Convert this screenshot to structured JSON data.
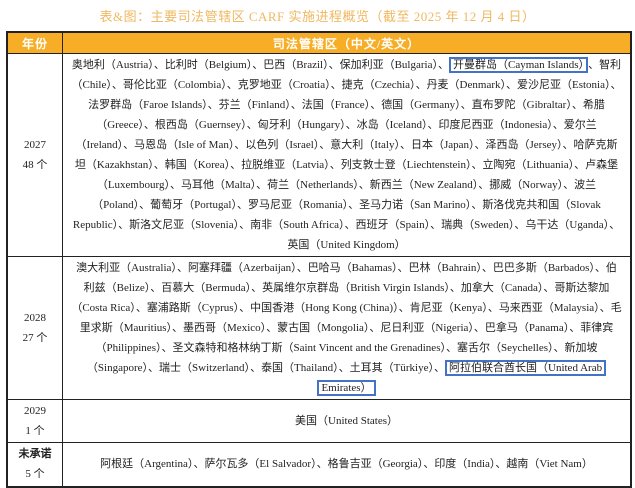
{
  "title": "表&图：主要司法管辖区 CARF 实施进程概览（截至 2025 年 12 月 4 日）",
  "headers": {
    "year": "年份",
    "jurisdictions": "司法管辖区（中文/英文）"
  },
  "separator": "、",
  "highlight_color": "#4472c4",
  "header_color": "#f7ae26",
  "rows": [
    {
      "year": "2027",
      "count": "48 个",
      "items": [
        {
          "t": "奥地利（Austria）"
        },
        {
          "t": "比利时（Belgium）"
        },
        {
          "t": "巴西（Brazil）"
        },
        {
          "t": "保加利亚（Bulgaria）"
        },
        {
          "t": "开曼群岛（Cayman Islands）",
          "hl": true
        },
        {
          "t": "智利（Chile）"
        },
        {
          "t": "哥伦比亚（Colombia）"
        },
        {
          "t": "克罗地亚（Croatia）"
        },
        {
          "t": "捷克（Czechia）"
        },
        {
          "t": "丹麦（Denmark）"
        },
        {
          "t": "爱沙尼亚（Estonia）"
        },
        {
          "t": "法罗群岛（Faroe Islands）"
        },
        {
          "t": "芬兰（Finland）"
        },
        {
          "t": "法国（France）"
        },
        {
          "t": "德国（Germany）"
        },
        {
          "t": "直布罗陀（Gibraltar）"
        },
        {
          "t": "希腊（Greece）"
        },
        {
          "t": "根西岛（Guernsey）"
        },
        {
          "t": "匈牙利（Hungary）"
        },
        {
          "t": "冰岛（Iceland）"
        },
        {
          "t": "印度尼西亚（Indonesia）"
        },
        {
          "t": "爱尔兰（Ireland）"
        },
        {
          "t": "马恩岛（Isle of Man）"
        },
        {
          "t": "以色列（Israel）"
        },
        {
          "t": "意大利（Italy）"
        },
        {
          "t": "日本（Japan）"
        },
        {
          "t": "泽西岛（Jersey）"
        },
        {
          "t": "哈萨克斯坦（Kazakhstan）"
        },
        {
          "t": "韩国（Korea）"
        },
        {
          "t": "拉脱维亚（Latvia）"
        },
        {
          "t": "列支敦士登（Liechtenstein）"
        },
        {
          "t": "立陶宛（Lithuania）"
        },
        {
          "t": "卢森堡（Luxembourg）"
        },
        {
          "t": "马耳他（Malta）"
        },
        {
          "t": "荷兰（Netherlands）"
        },
        {
          "t": "新西兰（New Zealand）"
        },
        {
          "t": "挪威（Norway）"
        },
        {
          "t": "波兰（Poland）"
        },
        {
          "t": "葡萄牙（Portugal）"
        },
        {
          "t": "罗马尼亚（Romania）"
        },
        {
          "t": "圣马力诺（San Marino）"
        },
        {
          "t": "斯洛伐克共和国（Slovak Republic）"
        },
        {
          "t": "斯洛文尼亚（Slovenia）"
        },
        {
          "t": "南非（South Africa）"
        },
        {
          "t": "西班牙（Spain）"
        },
        {
          "t": "瑞典（Sweden）"
        },
        {
          "t": "乌干达（Uganda）"
        },
        {
          "t": "英国（United Kingdom）"
        }
      ]
    },
    {
      "year": "2028",
      "count": "27 个",
      "items": [
        {
          "t": "澳大利亚（Australia）"
        },
        {
          "t": "阿塞拜疆（Azerbaijan）"
        },
        {
          "t": "巴哈马（Bahamas）"
        },
        {
          "t": "巴林（Bahrain）"
        },
        {
          "t": "巴巴多斯（Barbados）"
        },
        {
          "t": "伯利兹（Belize）"
        },
        {
          "t": "百慕大（Bermuda）"
        },
        {
          "t": "英属维尔京群岛（British Virgin Islands）"
        },
        {
          "t": "加拿大（Canada）"
        },
        {
          "t": "哥斯达黎加（Costa Rica）"
        },
        {
          "t": "塞浦路斯（Cyprus）"
        },
        {
          "t": "中国香港（Hong Kong (China)）"
        },
        {
          "t": "肯尼亚（Kenya）"
        },
        {
          "t": "马来西亚（Malaysia）"
        },
        {
          "t": "毛里求斯（Mauritius）"
        },
        {
          "t": "墨西哥（Mexico）"
        },
        {
          "t": "蒙古国（Mongolia）"
        },
        {
          "t": "尼日利亚（Nigeria）"
        },
        {
          "t": "巴拿马（Panama）"
        },
        {
          "t": "菲律宾（Philippines）"
        },
        {
          "t": "圣文森特和格林纳丁斯（Saint Vincent and the Grenadines）"
        },
        {
          "t": "塞舌尔（Seychelles）"
        },
        {
          "t": "新加坡（Singapore）"
        },
        {
          "t": "瑞士（Switzerland）"
        },
        {
          "t": "泰国（Thailand）"
        },
        {
          "t": "土耳其（Türkiye）"
        },
        {
          "t": "阿拉伯联合酋长国（United Arab Emirates）",
          "hl": true
        }
      ]
    },
    {
      "year": "2029",
      "count": "1 个",
      "items": [
        {
          "t": "美国（United States）"
        }
      ]
    },
    {
      "year": "未承诺",
      "count": "5 个",
      "items": [
        {
          "t": "阿根廷（Argentina）"
        },
        {
          "t": "萨尔瓦多（El Salvador）"
        },
        {
          "t": "格鲁吉亚（Georgia）"
        },
        {
          "t": "印度（India）"
        },
        {
          "t": "越南（Viet Nam）"
        }
      ]
    }
  ]
}
